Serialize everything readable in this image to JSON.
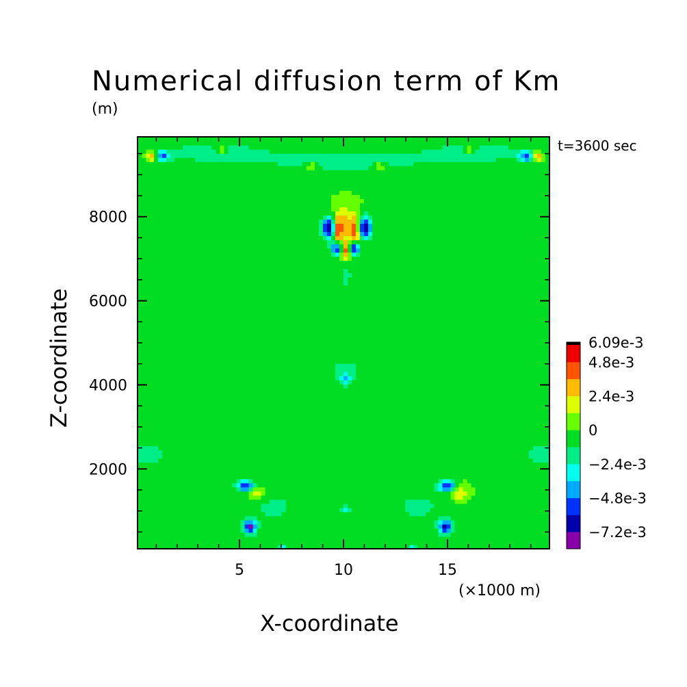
{
  "chart_data": {
    "type": "heatmap",
    "title": "Numerical diffusion term of Km",
    "units": "(m)",
    "xlabel": "X-coordinate",
    "ylabel": "Z-coordinate",
    "x_unit_note": "(×1000 m)",
    "time_label": "t=3600 sec",
    "xlim": [
      0.1,
      19.9
    ],
    "ylim": [
      100,
      9900
    ],
    "x_ticks": [
      5,
      10,
      15
    ],
    "y_ticks": [
      2000,
      4000,
      6000,
      8000
    ],
    "colorbar": {
      "levels": [
        -0.0084,
        -0.0072,
        -0.006,
        -0.0048,
        -0.0036,
        -0.0024,
        -0.0012,
        0,
        0.0012,
        0.0024,
        0.0036,
        0.0048,
        0.006,
        0.00609
      ],
      "colors": [
        "#8800aa",
        "#0000aa",
        "#0033ff",
        "#00aaff",
        "#00ffee",
        "#00ee88",
        "#00dd22",
        "#66ff00",
        "#ddff00",
        "#ffbb00",
        "#ff5500",
        "#ee0000",
        "#000000"
      ],
      "labels": [
        {
          "text": "6.09e-3",
          "value": 0.00609
        },
        {
          "text": "4.8e-3",
          "value": 0.0048
        },
        {
          "text": "2.4e-3",
          "value": 0.0024
        },
        {
          "text": "0",
          "value": 0
        },
        {
          "text": "−2.4e-3",
          "value": -0.0024
        },
        {
          "text": "−4.8e-3",
          "value": -0.0048
        },
        {
          "text": "−7.2e-3",
          "value": -0.0072
        }
      ]
    },
    "background_value": 0.0,
    "features": [
      {
        "x": 9.3,
        "z": 7750,
        "value": -0.0075,
        "sx": 0.25,
        "sz": 180
      },
      {
        "x": 11.0,
        "z": 7750,
        "value": -0.0075,
        "sx": 0.25,
        "sz": 180
      },
      {
        "x": 9.7,
        "z": 7250,
        "value": -0.0075,
        "sx": 0.2,
        "sz": 120
      },
      {
        "x": 10.5,
        "z": 7250,
        "value": -0.0075,
        "sx": 0.2,
        "sz": 120
      },
      {
        "x": 10.1,
        "z": 7200,
        "value": 0.006,
        "sx": 0.2,
        "sz": 150
      },
      {
        "x": 9.7,
        "z": 7700,
        "value": 0.005,
        "sx": 0.15,
        "sz": 250
      },
      {
        "x": 10.6,
        "z": 7700,
        "value": 0.005,
        "sx": 0.15,
        "sz": 250
      },
      {
        "x": 10.1,
        "z": 7800,
        "value": 0.003,
        "sx": 0.3,
        "sz": 300
      },
      {
        "x": 5.3,
        "z": 1600,
        "value": -0.006,
        "sx": 0.3,
        "sz": 90
      },
      {
        "x": 15.0,
        "z": 1600,
        "value": -0.006,
        "sx": 0.3,
        "sz": 90
      },
      {
        "x": 5.5,
        "z": 620,
        "value": -0.007,
        "sx": 0.22,
        "sz": 110
      },
      {
        "x": 14.9,
        "z": 620,
        "value": -0.007,
        "sx": 0.22,
        "sz": 110
      },
      {
        "x": 5.8,
        "z": 1450,
        "value": 0.003,
        "sx": 0.3,
        "sz": 120
      },
      {
        "x": 15.5,
        "z": 1450,
        "value": 0.003,
        "sx": 0.3,
        "sz": 120
      },
      {
        "x": 1.3,
        "z": 9450,
        "value": -0.005,
        "sx": 0.25,
        "sz": 90
      },
      {
        "x": 18.8,
        "z": 9450,
        "value": -0.005,
        "sx": 0.25,
        "sz": 90
      },
      {
        "x": 0.8,
        "z": 9450,
        "value": 0.004,
        "sx": 0.2,
        "sz": 80
      },
      {
        "x": 19.3,
        "z": 9450,
        "value": 0.004,
        "sx": 0.2,
        "sz": 80
      },
      {
        "x": 10.1,
        "z": 4150,
        "value": -0.003,
        "sx": 0.2,
        "sz": 100
      },
      {
        "x": 10.1,
        "z": 1050,
        "value": -0.003,
        "sx": 0.15,
        "sz": 60
      },
      {
        "x": 7.1,
        "z": 100,
        "value": -0.004,
        "sx": 0.15,
        "sz": 80
      },
      {
        "x": 13.3,
        "z": 100,
        "value": -0.004,
        "sx": 0.15,
        "sz": 80
      },
      {
        "x": 0.6,
        "z": 2350,
        "value": -0.0015,
        "sx": 1.0,
        "sz": 300
      },
      {
        "x": 19.5,
        "z": 2350,
        "value": -0.0015,
        "sx": 1.0,
        "sz": 300
      },
      {
        "x": 10.1,
        "z": 6600,
        "value": -0.0015,
        "sx": 0.3,
        "sz": 400
      },
      {
        "x": 10.1,
        "z": 4400,
        "value": -0.0013,
        "sx": 1.2,
        "sz": 350
      },
      {
        "x": 10.1,
        "z": 9300,
        "value": -0.0015,
        "sx": 4.0,
        "sz": 300
      },
      {
        "x": 3.5,
        "z": 9550,
        "value": -0.0015,
        "sx": 2.0,
        "sz": 200
      },
      {
        "x": 16.7,
        "z": 9550,
        "value": -0.0015,
        "sx": 2.0,
        "sz": 200
      },
      {
        "x": 6.6,
        "z": 1100,
        "value": -0.0014,
        "sx": 1.2,
        "sz": 400
      },
      {
        "x": 13.6,
        "z": 1100,
        "value": -0.0014,
        "sx": 1.2,
        "sz": 400
      },
      {
        "x": 8.5,
        "z": 9200,
        "value": 0.0025,
        "sx": 0.2,
        "sz": 60
      },
      {
        "x": 11.7,
        "z": 9200,
        "value": 0.0025,
        "sx": 0.2,
        "sz": 60
      },
      {
        "x": 4.1,
        "z": 9600,
        "value": 0.0025,
        "sx": 0.2,
        "sz": 60
      },
      {
        "x": 16.1,
        "z": 9600,
        "value": 0.0025,
        "sx": 0.2,
        "sz": 60
      }
    ]
  }
}
